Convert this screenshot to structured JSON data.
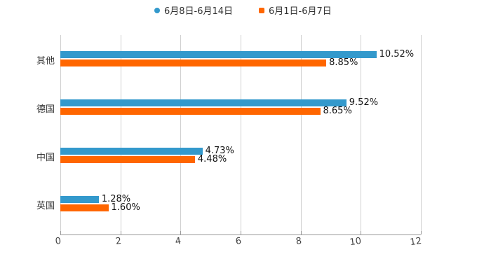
{
  "chart_data": {
    "type": "bar",
    "orientation": "horizontal",
    "title": "",
    "xlabel": "",
    "ylabel": "",
    "categories": [
      "其他",
      "德国",
      "中国",
      "英国"
    ],
    "series": [
      {
        "name": "6月8日-6月14日",
        "color": "#3399CC",
        "values": [
          10.52,
          9.52,
          4.73,
          1.28
        ],
        "labels": [
          "10.52%",
          "9.52%",
          "4.73%",
          "1.28%"
        ]
      },
      {
        "name": "6月1日-6月7日",
        "color": "#FF6600",
        "values": [
          8.85,
          8.65,
          4.48,
          1.6
        ],
        "labels": [
          "8.85%",
          "8.65%",
          "4.48%",
          "1.60%"
        ]
      }
    ],
    "xlim": [
      0,
      12
    ],
    "xticks": [
      "0",
      "2",
      "4",
      "6",
      "8",
      "10",
      "12"
    ],
    "grid": "vertical",
    "legend_position": "top"
  },
  "legend": [
    {
      "label": "6月8日-6月14日",
      "color": "#3399CC",
      "shape": "circle"
    },
    {
      "label": "6月1日-6月7日",
      "color": "#FF6600",
      "shape": "square"
    }
  ]
}
